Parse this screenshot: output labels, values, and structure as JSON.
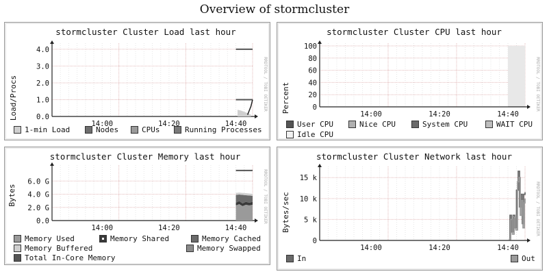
{
  "page": {
    "title": "Overview of stormcluster"
  },
  "watermark": "RRDTOOL / TOBI OETIKER",
  "panels": {
    "load": {
      "title": "stormcluster Cluster Load last hour",
      "ylabel": "Load/Procs",
      "legend": [
        {
          "label": "1-min Load",
          "color": "#cfcfcf"
        },
        {
          "label": "Nodes",
          "color": "#6e6e6e"
        },
        {
          "label": "CPUs",
          "color": "#9a9a9a"
        },
        {
          "label": "Running Processes",
          "color": "#7a7a7a"
        }
      ]
    },
    "cpu": {
      "title": "stormcluster Cluster CPU last hour",
      "ylabel": "Percent",
      "legend": [
        {
          "label": "User CPU",
          "color": "#555555"
        },
        {
          "label": "Nice CPU",
          "color": "#b0b0b0"
        },
        {
          "label": "System CPU",
          "color": "#6a6a6a"
        },
        {
          "label": "WAIT CPU",
          "color": "#bdbdbd"
        },
        {
          "label": "Idle CPU",
          "color": "#f2f2f2"
        }
      ]
    },
    "mem": {
      "title": "stormcluster Cluster Memory last hour",
      "ylabel": "Bytes",
      "legend": [
        {
          "label": "Memory Used",
          "color": "#9a9a9a"
        },
        {
          "label": "Memory Shared",
          "color": "#3a3a3a"
        },
        {
          "label": "Memory Cached",
          "color": "#6a6a6a"
        },
        {
          "label": "Memory Buffered",
          "color": "#cfcfcf"
        },
        {
          "label": "Memory Swapped",
          "color": "#8a8a8a"
        },
        {
          "label": "Total In-Core Memory",
          "color": "#555555"
        }
      ]
    },
    "net": {
      "title": "stormcluster Cluster Network last hour",
      "ylabel": "Bytes/sec",
      "legend": [
        {
          "label": "In",
          "color": "#6a6a6a"
        },
        {
          "label": "Out",
          "color": "#9a9a9a"
        }
      ]
    }
  },
  "chart_data": [
    {
      "type": "line",
      "title": "stormcluster Cluster Load last hour",
      "ylabel": "Load/Procs",
      "x_ticks": [
        "14:00",
        "14:20",
        "14:40"
      ],
      "y_ticks": [
        "0.0",
        "1.0",
        "2.0",
        "3.0",
        "4.0"
      ],
      "ylim": [
        0,
        4.2
      ],
      "x_range_minutes": [
        0,
        60
      ],
      "series": [
        {
          "name": "1-min Load",
          "x": [
            55.5,
            56.5,
            58.5,
            59.5
          ],
          "y": [
            0.4,
            0.35,
            0.2,
            0.1
          ]
        },
        {
          "name": "Nodes",
          "x": [
            55,
            60
          ],
          "y": [
            1.0,
            1.0
          ]
        },
        {
          "name": "CPUs",
          "x": [
            55,
            60
          ],
          "y": [
            4.0,
            4.0
          ]
        },
        {
          "name": "Running Processes",
          "x": [
            58.5,
            59.5,
            60
          ],
          "y": [
            0.1,
            0.6,
            1.0
          ]
        }
      ],
      "grid": true
    },
    {
      "type": "area",
      "title": "stormcluster Cluster CPU last hour",
      "ylabel": "Percent",
      "x_ticks": [
        "14:00",
        "14:20",
        "14:40"
      ],
      "y_ticks": [
        "0",
        "20",
        "40",
        "60",
        "80",
        "100"
      ],
      "ylim": [
        0,
        100
      ],
      "x_range_minutes": [
        0,
        60
      ],
      "series": [
        {
          "name": "User CPU",
          "x": [
            55,
            60
          ],
          "y": [
            1,
            1
          ]
        },
        {
          "name": "Idle CPU",
          "x": [
            55,
            60
          ],
          "y": [
            99,
            99
          ]
        }
      ],
      "grid": true
    },
    {
      "type": "area",
      "title": "stormcluster Cluster Memory last hour",
      "ylabel": "Bytes",
      "x_ticks": [
        "14:00",
        "14:20",
        "14:40"
      ],
      "y_ticks": [
        "0.0",
        "2.0 G",
        "4.0 G",
        "6.0 G"
      ],
      "ylim": [
        0,
        8
      ],
      "x_range_minutes": [
        0,
        60
      ],
      "series": [
        {
          "name": "Memory Used",
          "x": [
            55,
            56,
            57,
            58,
            59,
            60
          ],
          "y": [
            2.3,
            2.5,
            2.2,
            2.4,
            2.3,
            2.4
          ]
        },
        {
          "name": "Memory Shared",
          "x": [
            55,
            56,
            57,
            58,
            59,
            60
          ],
          "y": [
            0.4,
            0.45,
            0.4,
            0.45,
            0.4,
            0.45
          ]
        },
        {
          "name": "Memory Cached",
          "x": [
            55,
            56,
            57,
            58,
            59,
            60
          ],
          "y": [
            1.2,
            1.0,
            1.3,
            1.0,
            1.1,
            0.9
          ]
        },
        {
          "name": "Memory Buffered",
          "x": [
            55,
            56,
            57,
            58,
            59,
            60
          ],
          "y": [
            0.3,
            0.3,
            0.3,
            0.3,
            0.3,
            0.3
          ]
        },
        {
          "name": "Total In-Core Memory",
          "x": [
            55,
            60
          ],
          "y": [
            7.6,
            7.6
          ]
        }
      ],
      "grid": true
    },
    {
      "type": "line",
      "title": "stormcluster Cluster Network last hour",
      "ylabel": "Bytes/sec",
      "x_ticks": [
        "14:00",
        "14:20",
        "14:40"
      ],
      "y_ticks": [
        "0",
        "5 k",
        "10 k",
        "15 k"
      ],
      "ylim": [
        0,
        17
      ],
      "x_range_minutes": [
        0,
        60
      ],
      "series": [
        {
          "name": "In",
          "x": [
            55.3,
            55.6,
            56.0,
            56.5,
            57.0,
            57.5,
            58.0,
            58.4,
            58.8,
            59.2,
            59.6,
            60.0
          ],
          "y": [
            0.2,
            6.0,
            2.0,
            6.0,
            3.0,
            12.0,
            16.5,
            8.0,
            11.0,
            4.0,
            11.0,
            11.5
          ]
        },
        {
          "name": "Out",
          "x": [
            55.3,
            55.8,
            56.3,
            56.8,
            57.3,
            57.8,
            58.2,
            58.6,
            59.0,
            59.4,
            59.8,
            60.0
          ],
          "y": [
            0.3,
            5.0,
            1.5,
            5.5,
            2.5,
            14.0,
            15.0,
            6.0,
            9.5,
            3.0,
            9.0,
            10.0
          ]
        }
      ],
      "grid": true
    }
  ]
}
